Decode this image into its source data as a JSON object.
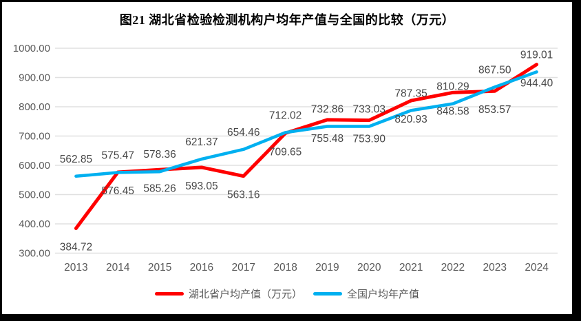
{
  "chart_data": {
    "type": "line",
    "title": "图21 湖北省检验检测机构户均年产值与全国的比较（万元）",
    "categories": [
      "2013",
      "2014",
      "2015",
      "2016",
      "2017",
      "2018",
      "2019",
      "2020",
      "2021",
      "2022",
      "2023",
      "2024"
    ],
    "series": [
      {
        "name": "湖北省户均产值（万元）",
        "color": "#FF0000",
        "label_position": "below",
        "values": [
          384.72,
          576.45,
          585.26,
          593.05,
          563.16,
          709.65,
          755.48,
          753.9,
          820.93,
          848.58,
          853.57,
          944.4
        ]
      },
      {
        "name": "全国户均年产值",
        "color": "#00B0F0",
        "label_position": "above",
        "values": [
          562.85,
          575.47,
          578.36,
          621.37,
          654.46,
          712.02,
          732.86,
          733.03,
          787.35,
          810.29,
          867.5,
          919.01
        ]
      }
    ],
    "xlabel": "",
    "ylabel": "",
    "ylim": [
      300,
      1000
    ],
    "ytick_step": 100,
    "ytick_format_decimals": 2,
    "grid": "horizontal",
    "legend_position": "bottom"
  },
  "theme": {
    "grid_color": "#E0E0E0",
    "axis_text_color": "#595959",
    "data_label_color": "#474747",
    "title_color": "#000000",
    "frame_color": "#000000",
    "background": "#FFFFFF"
  }
}
